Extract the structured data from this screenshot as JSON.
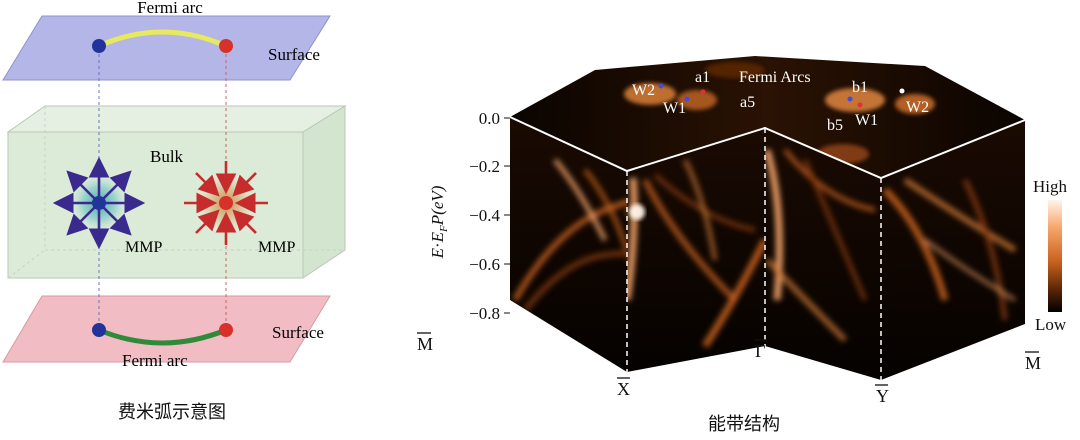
{
  "left_figure": {
    "caption": "费米弧示意图",
    "labels": {
      "top_arc": "Fermi arc",
      "bottom_arc": "Fermi arc",
      "surface_top": "Surface",
      "surface_bottom": "Surface",
      "bulk": "Bulk",
      "mmp_left": "MMP",
      "mmp_right": "MMP"
    },
    "colors": {
      "top_plane": "#b3b6e6",
      "bottom_plane": "#f1bcc4",
      "bulk_box": "#dcebd8",
      "arc_top": "#e7ea5c",
      "arc_bottom": "#2f8a3a",
      "blue_node": "#22349b",
      "red_node": "#d8302a",
      "blue_arrows": "#3a2a8e",
      "red_arrows": "#c62c2c"
    },
    "icons": [
      "source-node-icon",
      "sink-node-icon"
    ]
  },
  "right_figure": {
    "caption": "能带结构",
    "y_axis": {
      "label_parts": [
        "E",
        "·",
        "E",
        "F",
        "P(eV)"
      ],
      "ticks": [
        "0.0",
        "−0.2",
        "−0.4",
        "−0.6",
        "−0.8"
      ]
    },
    "k_labels": {
      "m_left": "M",
      "x": "X",
      "gamma": "Γ",
      "y": "Y",
      "m_right": "M"
    },
    "surface_labels": {
      "title": "Fermi Arcs",
      "w2_left": "W2",
      "w1_left": "W1",
      "a1": "a1",
      "a5": "a5",
      "b1": "b1",
      "b5": "b5",
      "w1_right": "W1",
      "w2_right": "W2"
    },
    "colorbar": {
      "high": "High",
      "low": "Low"
    },
    "colors": {
      "low": "#000000",
      "mid": "#8a3a0a",
      "high": "#f6a56a",
      "peak": "#fff4ea"
    }
  }
}
